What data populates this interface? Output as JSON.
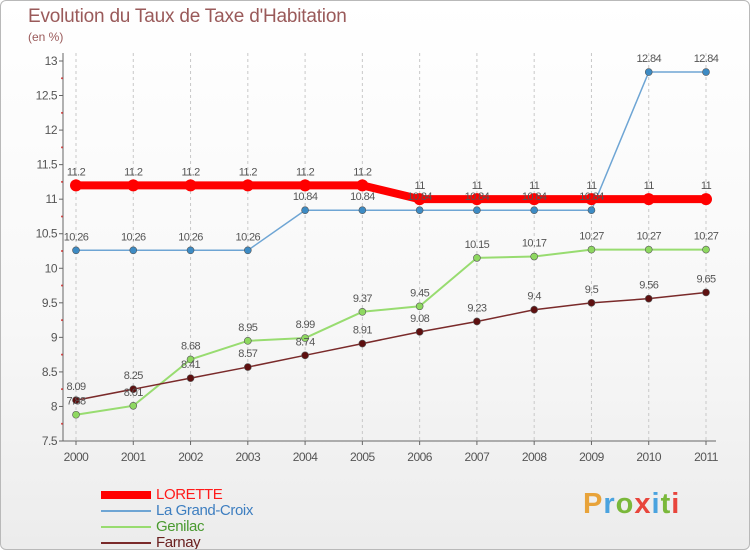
{
  "header": {
    "title": "Evolution du Taux de Taxe d'Habitation",
    "unit": "(en %)"
  },
  "brand": {
    "text": "Proxiti",
    "colors": [
      "#e8a33a",
      "#4aa3df",
      "#7ab83a",
      "#e8453c",
      "#4aa3df",
      "#7ab83a",
      "#e8453c"
    ]
  },
  "chart_data": {
    "type": "line",
    "title": "Evolution du Taux de Taxe d'Habitation",
    "ylabel": "(en %)",
    "xlabel": "",
    "ylim": [
      7.5,
      13
    ],
    "yticks": [
      "7.5",
      "8",
      "8.5",
      "9",
      "9.5",
      "10",
      "10.5",
      "11",
      "11.5",
      "12",
      "12.5",
      "13"
    ],
    "categories": [
      "2000",
      "2001",
      "2002",
      "2003",
      "2004",
      "2005",
      "2006",
      "2007",
      "2008",
      "2009",
      "2010",
      "2011"
    ],
    "grid": "vertical dashed",
    "legend_position": "bottom-left",
    "series": [
      {
        "name": "LORETTE",
        "color": "#ff0000",
        "dot": "#ff0000",
        "width": 8,
        "values": [
          11.2,
          11.2,
          11.2,
          11.2,
          11.2,
          11.2,
          11,
          11,
          11,
          11,
          11,
          11
        ],
        "labels": [
          "11.2",
          "11.2",
          "11.2",
          "11.2",
          "11.2",
          "11.2",
          "11",
          "11",
          "11",
          "11",
          "11",
          "11"
        ]
      },
      {
        "name": "La Grand-Croix",
        "color": "#6ea5d4",
        "dot": "#3d8bc4",
        "width": 1.5,
        "values": [
          10.26,
          10.26,
          10.26,
          10.26,
          10.84,
          10.84,
          10.84,
          10.84,
          10.84,
          10.84,
          12.84,
          12.84
        ],
        "labels": [
          "10.26",
          "10.26",
          "10.26",
          "10.26",
          "10.84",
          "10.84",
          "10.84",
          "10.84",
          "10.84",
          "10.84",
          "12.84",
          "12.84"
        ]
      },
      {
        "name": "Genilac",
        "color": "#98dc70",
        "dot": "#8ed860",
        "width": 2,
        "values": [
          7.88,
          8.01,
          8.68,
          8.95,
          8.99,
          9.37,
          9.45,
          10.15,
          10.17,
          10.27,
          10.27,
          10.27
        ],
        "labels": [
          "7.88",
          "8.01",
          "8.68",
          "8.95",
          "8.99",
          "9.37",
          "9.45",
          "10.15",
          "10.17",
          "10.27",
          "10.27",
          "10.27"
        ]
      },
      {
        "name": "Farnay",
        "color": "#7a2a2a",
        "dot": "#5e1010",
        "width": 1.5,
        "values": [
          8.09,
          8.25,
          8.41,
          8.57,
          8.74,
          8.91,
          9.08,
          9.23,
          9.4,
          9.5,
          9.56,
          9.65
        ],
        "labels": [
          "8.09",
          "8.25",
          "8.41",
          "8.57",
          "8.74",
          "8.91",
          "9.08",
          "9.23",
          "9.4",
          "9.5",
          "9.56",
          "9.65"
        ]
      }
    ]
  },
  "legend": {
    "items": [
      {
        "label": "LORETTE",
        "color": "#ff0000",
        "text_color": "#ff1a1a"
      },
      {
        "label": "La Grand-Croix",
        "color": "#6ea5d4",
        "text_color": "#3d7ec0"
      },
      {
        "label": "Genilac",
        "color": "#98dc70",
        "text_color": "#4a9a30"
      },
      {
        "label": "Farnay",
        "color": "#7a2a2a",
        "text_color": "#6a2020"
      }
    ]
  }
}
